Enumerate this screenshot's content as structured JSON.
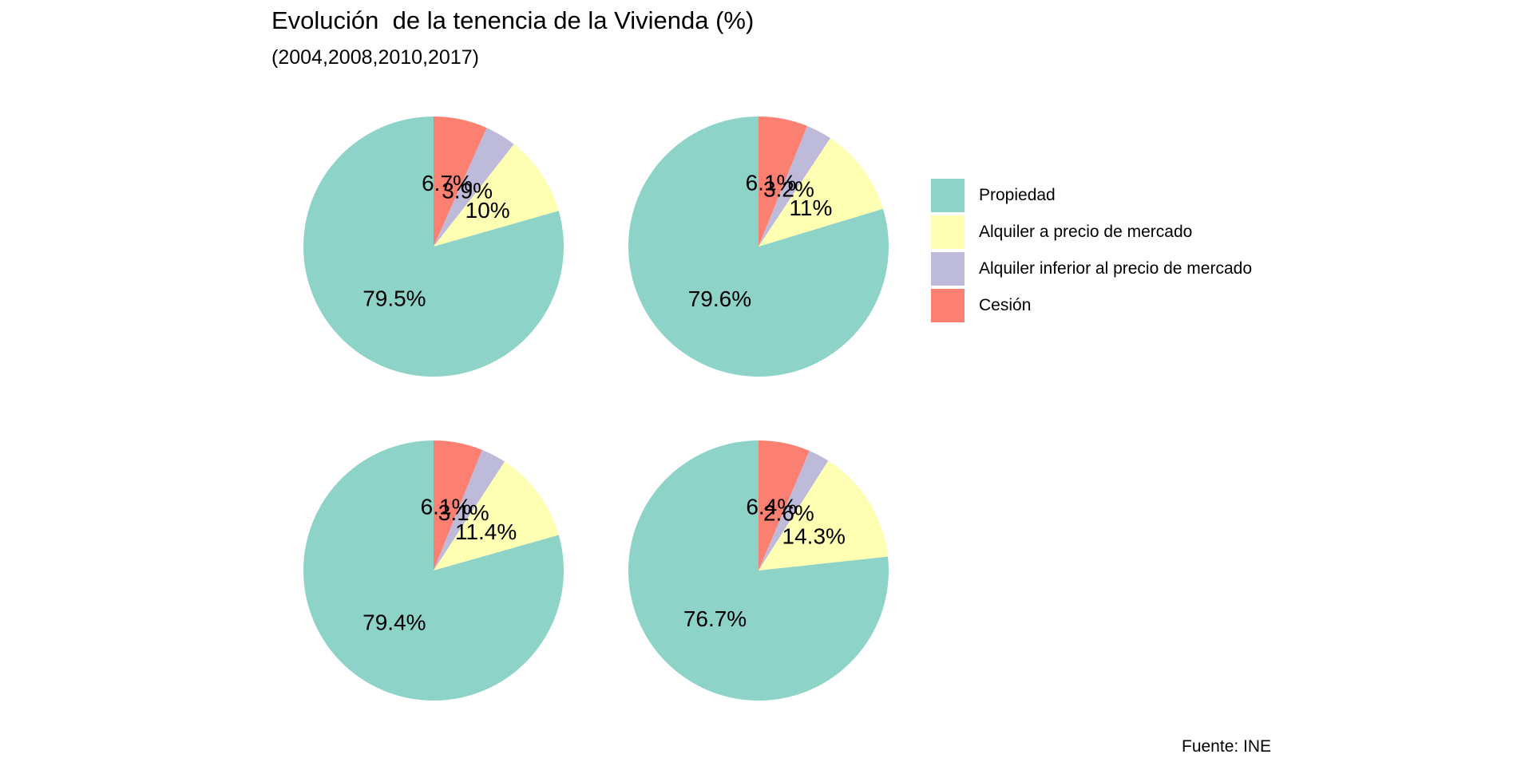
{
  "chart_data": {
    "type": "pie",
    "title": "Evolución  de la tenencia de la Vivienda (%)",
    "subtitle": "(2004,2008,2010,2017)",
    "caption": "Fuente: INE",
    "legend_position": "right",
    "categories": [
      "Propiedad",
      "Alquiler a precio de mercado",
      "Alquiler inferior al precio de mercado",
      "Cesión"
    ],
    "colors": [
      "#8DD3C7",
      "#FFFFB3",
      "#BEBADA",
      "#FB8072"
    ],
    "pies": [
      {
        "values": [
          79.5,
          10.0,
          3.9,
          6.7
        ],
        "labels": [
          "79.5%",
          "10%",
          "3.9%",
          "6.7%"
        ]
      },
      {
        "values": [
          79.6,
          11.0,
          3.2,
          6.1
        ],
        "labels": [
          "79.6%",
          "11%",
          "3.2%",
          "6.1%"
        ]
      },
      {
        "values": [
          79.4,
          11.4,
          3.1,
          6.1
        ],
        "labels": [
          "79.4%",
          "11.4%",
          "3.1%",
          "6.1%"
        ]
      },
      {
        "values": [
          76.7,
          14.3,
          2.6,
          6.4
        ],
        "labels": [
          "76.7%",
          "14.3%",
          "2.6%",
          "6.4%"
        ]
      }
    ]
  }
}
